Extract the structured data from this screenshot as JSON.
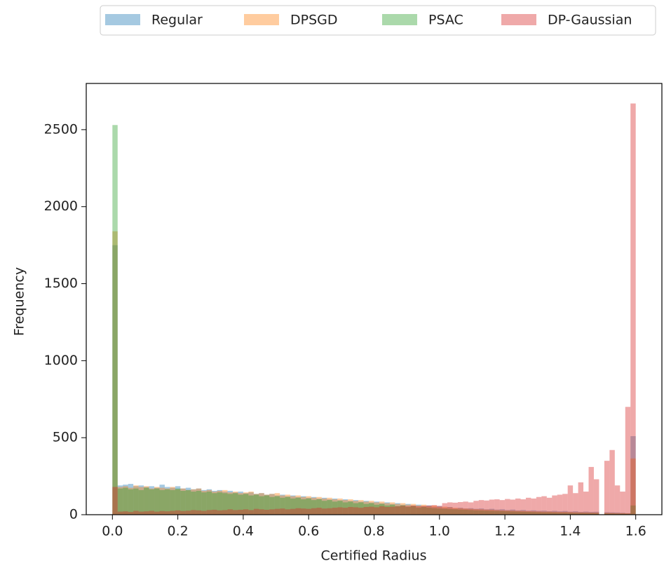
{
  "chart_data": {
    "type": "histogram",
    "xlabel": "Certified Radius",
    "ylabel": "Frequency",
    "xlim": [
      -0.08,
      1.68
    ],
    "ylim": [
      0,
      2800
    ],
    "xticks": [
      {
        "value": 0,
        "label": "0.0"
      },
      0.2,
      0.4,
      0.6,
      0.8,
      {
        "value": 1,
        "label": "1.0"
      },
      1.2,
      1.4,
      1.6
    ],
    "yticks": [
      0,
      500,
      1000,
      1500,
      2000,
      2500
    ],
    "legend": "upper center outside",
    "opacity": 0.4,
    "bins": [
      0,
      0.016,
      0.032,
      0.048,
      0.064,
      0.08,
      0.096,
      0.112,
      0.128,
      0.144,
      0.16,
      0.176,
      0.192,
      0.208,
      0.224,
      0.24,
      0.256,
      0.272,
      0.288,
      0.304,
      0.32,
      0.336,
      0.352,
      0.368,
      0.384,
      0.4,
      0.416,
      0.432,
      0.448,
      0.464,
      0.48,
      0.496,
      0.512,
      0.528,
      0.544,
      0.56,
      0.576,
      0.592,
      0.608,
      0.624,
      0.64,
      0.656,
      0.672,
      0.688,
      0.704,
      0.72,
      0.736,
      0.752,
      0.768,
      0.784,
      0.8,
      0.816,
      0.832,
      0.848,
      0.864,
      0.88,
      0.896,
      0.912,
      0.928,
      0.944,
      0.96,
      0.976,
      0.992,
      1.008,
      1.024,
      1.04,
      1.056,
      1.072,
      1.088,
      1.104,
      1.12,
      1.136,
      1.152,
      1.168,
      1.184,
      1.2,
      1.216,
      1.232,
      1.248,
      1.264,
      1.28,
      1.296,
      1.312,
      1.328,
      1.344,
      1.36,
      1.376,
      1.392,
      1.408,
      1.424,
      1.44,
      1.456,
      1.472,
      1.488,
      1.504,
      1.52,
      1.536,
      1.552,
      1.568,
      1.584,
      1.6
    ],
    "series": [
      {
        "name": "Regular",
        "color": "#1f77b4",
        "values": [
          1750,
          190,
          195,
          200,
          185,
          190,
          180,
          185,
          175,
          195,
          180,
          175,
          185,
          170,
          175,
          165,
          170,
          160,
          165,
          155,
          160,
          150,
          155,
          145,
          150,
          140,
          145,
          135,
          140,
          130,
          135,
          125,
          130,
          120,
          125,
          115,
          120,
          110,
          115,
          105,
          110,
          100,
          105,
          95,
          100,
          90,
          95,
          85,
          90,
          80,
          85,
          75,
          80,
          70,
          75,
          65,
          70,
          60,
          65,
          55,
          60,
          50,
          55,
          45,
          50,
          40,
          45,
          40,
          42,
          38,
          40,
          35,
          38,
          33,
          35,
          30,
          33,
          28,
          30,
          26,
          28,
          25,
          26,
          23,
          25,
          22,
          24,
          20,
          22,
          18,
          20,
          18,
          19,
          0,
          16,
          15,
          14,
          12,
          10,
          510
        ]
      },
      {
        "name": "DPSGD",
        "color": "#ff7f0e",
        "values": [
          1840,
          180,
          185,
          175,
          190,
          180,
          185,
          170,
          180,
          175,
          170,
          180,
          165,
          170,
          160,
          165,
          170,
          155,
          160,
          150,
          155,
          160,
          145,
          150,
          140,
          145,
          150,
          135,
          140,
          130,
          135,
          140,
          125,
          130,
          120,
          125,
          115,
          120,
          110,
          115,
          105,
          110,
          100,
          105,
          95,
          100,
          90,
          95,
          85,
          90,
          80,
          85,
          75,
          80,
          70,
          75,
          65,
          70,
          60,
          65,
          55,
          60,
          50,
          52,
          48,
          45,
          42,
          40,
          38,
          36,
          35,
          33,
          32,
          30,
          28,
          27,
          26,
          25,
          24,
          23,
          22,
          21,
          20,
          20,
          19,
          18,
          18,
          17,
          16,
          15,
          15,
          14,
          14,
          0,
          12,
          11,
          10,
          10,
          9,
          365
        ]
      },
      {
        "name": "PSAC",
        "color": "#2ca02c",
        "values": [
          2530,
          170,
          175,
          165,
          170,
          160,
          175,
          165,
          170,
          160,
          165,
          160,
          170,
          155,
          160,
          150,
          155,
          145,
          150,
          140,
          145,
          140,
          135,
          140,
          130,
          135,
          125,
          130,
          120,
          125,
          115,
          120,
          110,
          115,
          105,
          110,
          100,
          105,
          95,
          100,
          90,
          95,
          85,
          90,
          80,
          85,
          75,
          80,
          70,
          75,
          65,
          70,
          60,
          65,
          55,
          60,
          50,
          55,
          45,
          50,
          45,
          42,
          40,
          38,
          36,
          35,
          33,
          32,
          30,
          28,
          27,
          26,
          25,
          24,
          23,
          22,
          21,
          20,
          19,
          18,
          17,
          16,
          15,
          15,
          14,
          13,
          13,
          12,
          11,
          11,
          10,
          10,
          9,
          0,
          8,
          8,
          7,
          7,
          6,
          60
        ]
      },
      {
        "name": "DP-Gaussian",
        "color": "#d62728",
        "values": [
          180,
          20,
          22,
          18,
          25,
          20,
          22,
          25,
          20,
          24,
          22,
          25,
          28,
          24,
          26,
          30,
          28,
          25,
          30,
          32,
          28,
          30,
          35,
          30,
          32,
          35,
          30,
          38,
          35,
          32,
          35,
          38,
          40,
          35,
          38,
          42,
          40,
          38,
          42,
          45,
          40,
          42,
          45,
          48,
          45,
          50,
          48,
          45,
          50,
          52,
          48,
          55,
          50,
          52,
          55,
          58,
          55,
          60,
          55,
          58,
          60,
          62,
          58,
          75,
          80,
          78,
          82,
          85,
          80,
          90,
          95,
          92,
          98,
          100,
          95,
          102,
          98,
          105,
          100,
          110,
          105,
          115,
          120,
          110,
          125,
          130,
          135,
          190,
          140,
          210,
          150,
          310,
          230,
          0,
          350,
          420,
          190,
          150,
          700,
          2670
        ]
      }
    ]
  }
}
